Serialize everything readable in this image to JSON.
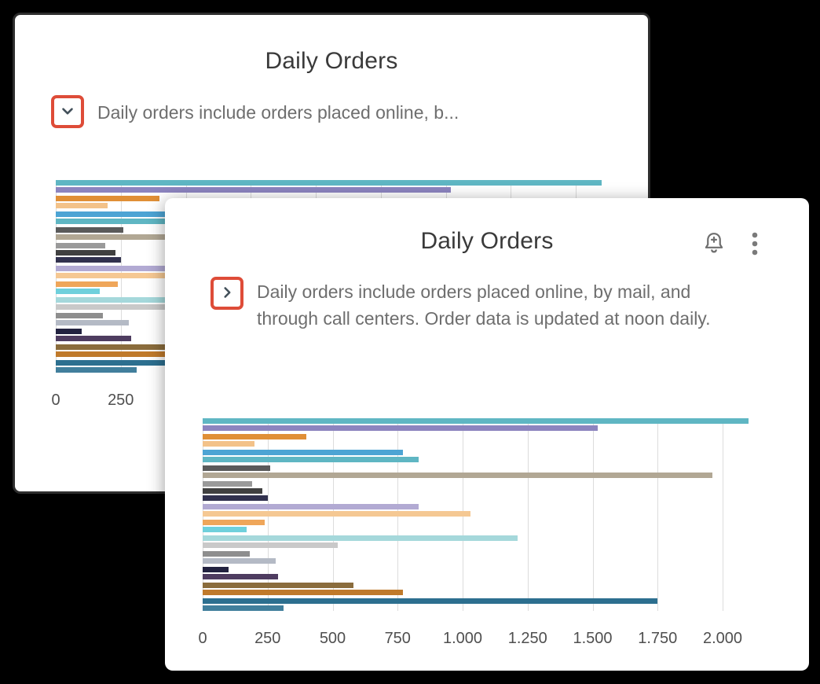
{
  "colors": {
    "background": "#000000",
    "card_background": "#ffffff",
    "card_border": "#2e2e2e",
    "accent_red": "#de4c38",
    "title_text": "#3a3a3a",
    "description_text": "#6e6e6e",
    "axis_text": "#4f4f4f",
    "gridline": "#dcdcdc",
    "icon_gray": "#6f6f6f"
  },
  "back_card": {
    "title": "Daily Orders",
    "description": "Daily orders include orders placed online, b...",
    "state": "description-collapsed",
    "chevron_icon": "chevron-down-icon"
  },
  "front_card": {
    "title": "Daily Orders",
    "description": "Daily orders include orders placed online, by mail, and through call centers. Order data is updated at noon daily.",
    "state": "description-expanded",
    "chevron_icon": "chevron-right-icon",
    "header_icons": [
      "bell-plus-icon",
      "kebab-menu-icon"
    ]
  },
  "chart_data": {
    "type": "bar",
    "orientation": "horizontal",
    "title": "Daily Orders",
    "xlabel": "",
    "ylabel": "",
    "xlim": [
      0,
      2000
    ],
    "grid": true,
    "legend": false,
    "x_tick_values": [
      0,
      250,
      500,
      750,
      1000,
      1250,
      1500,
      1750,
      2000
    ],
    "x_tick_labels": [
      "0",
      "250",
      "500",
      "750",
      "1.000",
      "1.250",
      "1.500",
      "1.750",
      "2.000"
    ],
    "bars": [
      {
        "value": 2100,
        "color": "#5fb6c3"
      },
      {
        "value": 1520,
        "color": "#8c84bf"
      },
      {
        "value": 400,
        "color": "#e08f36",
        "new_group": true
      },
      {
        "value": 200,
        "color": "#f3c289"
      },
      {
        "value": 770,
        "color": "#4da4d4",
        "new_group": true
      },
      {
        "value": 830,
        "color": "#5fb6c3"
      },
      {
        "value": 260,
        "color": "#5a5a5a",
        "new_group": true
      },
      {
        "value": 1960,
        "color": "#b1a794"
      },
      {
        "value": 190,
        "color": "#9a9a9a",
        "new_group": true
      },
      {
        "value": 230,
        "color": "#404040"
      },
      {
        "value": 250,
        "color": "#31314e"
      },
      {
        "value": 830,
        "color": "#b2aad3",
        "new_group": true
      },
      {
        "value": 1030,
        "color": "#f5c893"
      },
      {
        "value": 240,
        "color": "#efa65a",
        "new_group": true
      },
      {
        "value": 170,
        "color": "#6fd0dc"
      },
      {
        "value": 1210,
        "color": "#a5d8db",
        "new_group": true
      },
      {
        "value": 520,
        "color": "#c9c9c9"
      },
      {
        "value": 180,
        "color": "#8e8e8e",
        "new_group": true
      },
      {
        "value": 280,
        "color": "#b4bac5"
      },
      {
        "value": 100,
        "color": "#222240",
        "new_group": true
      },
      {
        "value": 290,
        "color": "#4e3c60"
      },
      {
        "value": 580,
        "color": "#8a6c3c",
        "new_group": true
      },
      {
        "value": 770,
        "color": "#c07a2b"
      },
      {
        "value": 1750,
        "color": "#2c6f8f",
        "new_group": true
      },
      {
        "value": 310,
        "color": "#417f9c"
      }
    ]
  }
}
